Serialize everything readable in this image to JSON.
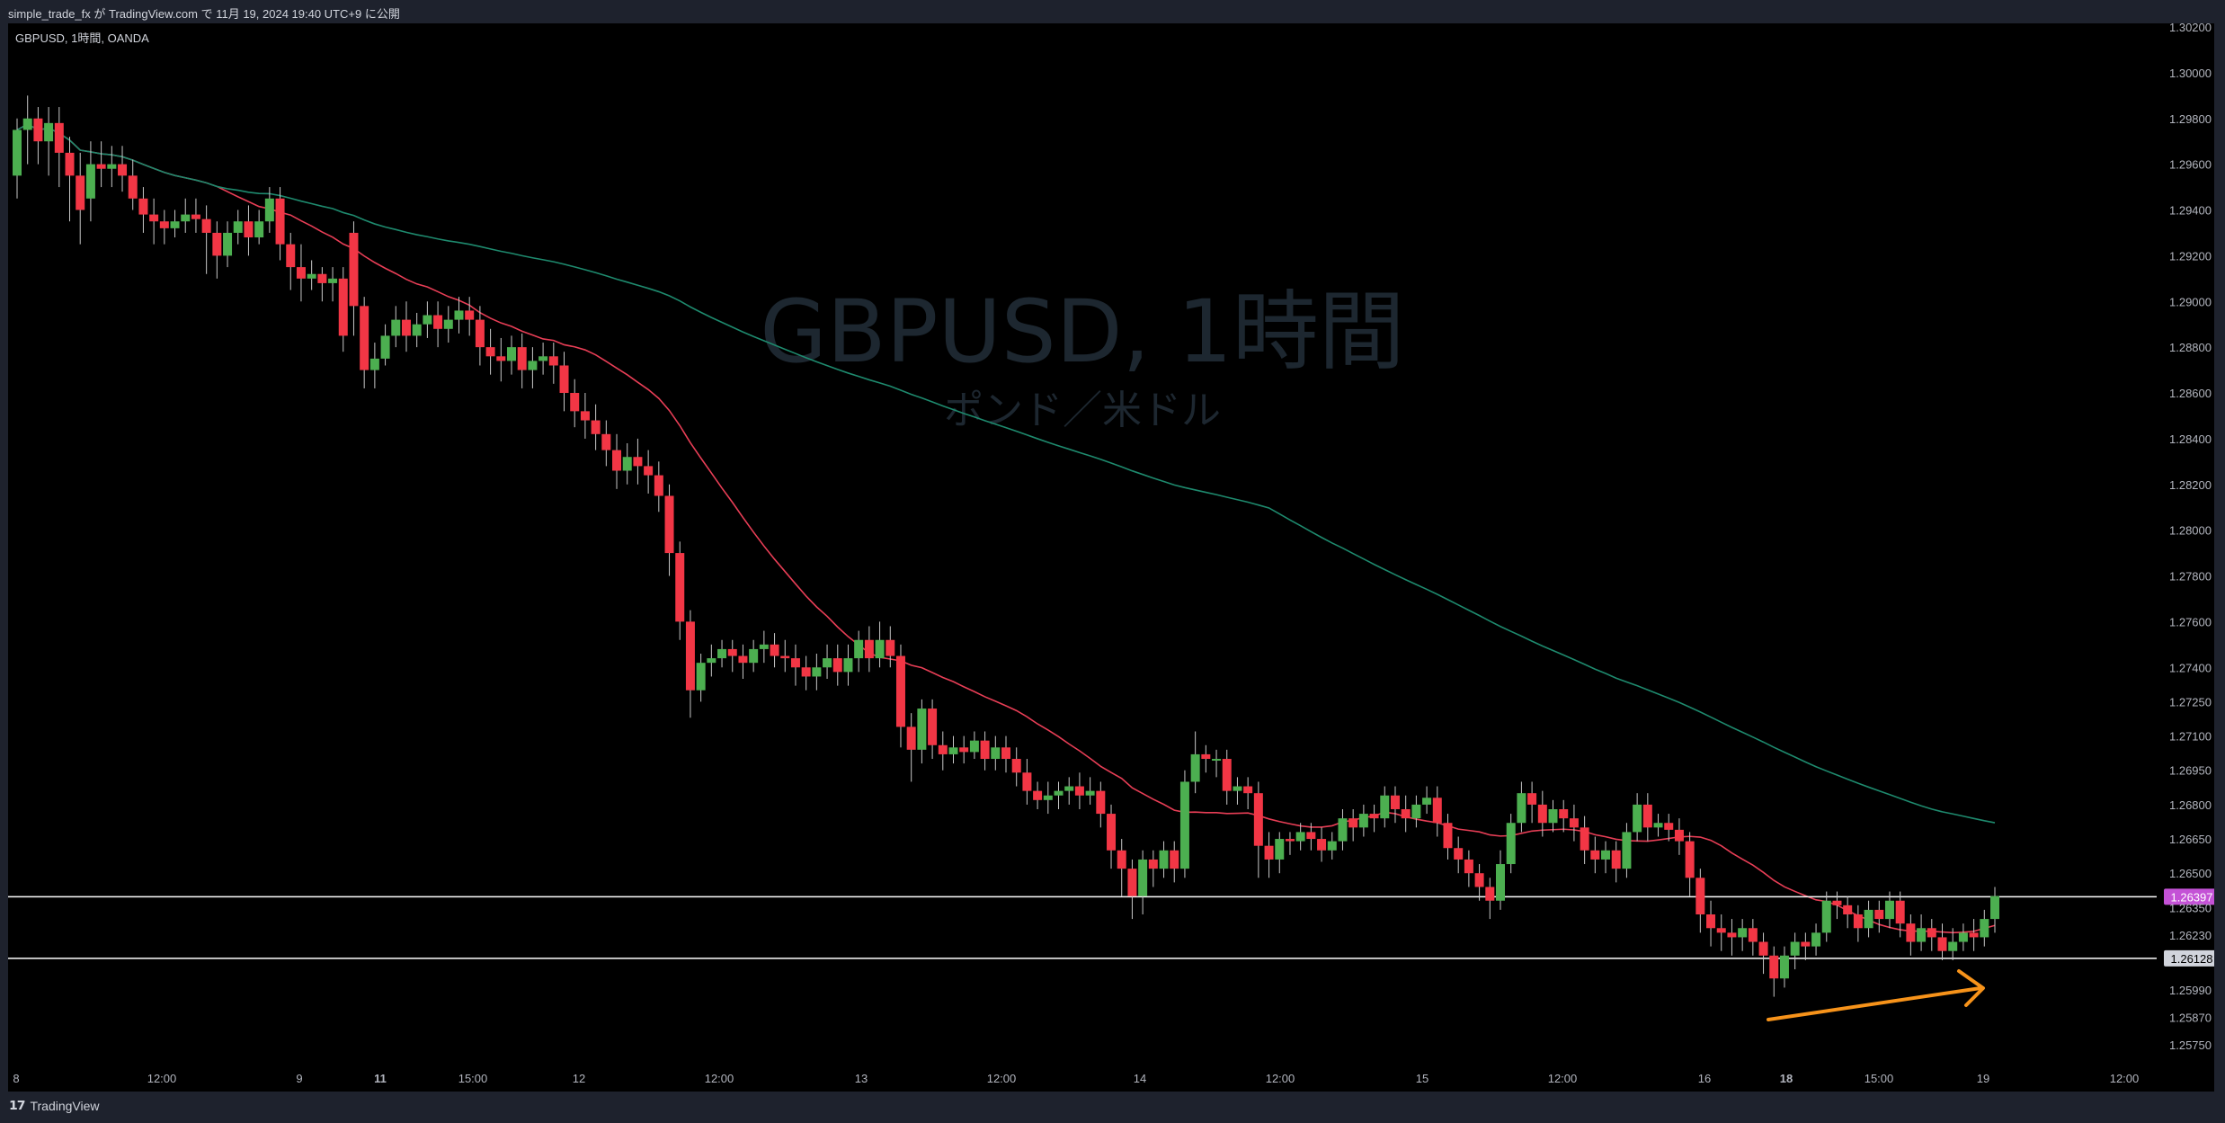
{
  "header": {
    "publish_line": "simple_trade_fx が TradingView.com で 11月 19, 2024 19:40 UTC+9 に公開"
  },
  "footer": {
    "brand": "TradingView",
    "logo": "tradingview-logo-icon"
  },
  "colors": {
    "up": "#4caf50",
    "down": "#f23645",
    "ma_fast": "#e83e56",
    "ma_slow": "#1e8a6e",
    "arrow": "#f7931a",
    "hline": "#ffffff",
    "price_tag_current": "#c452d6"
  },
  "chart_data": {
    "type": "candlestick",
    "symbol_line": "GBPUSD, 1時間, OANDA",
    "watermark_title": "GBPUSD, 1時間",
    "watermark_subtitle": "ポンド／米ドル",
    "y_axis_ticks": [
      "1.30200",
      "1.30000",
      "1.29800",
      "1.29600",
      "1.29400",
      "1.29200",
      "1.29000",
      "1.28800",
      "1.28600",
      "1.28400",
      "1.28200",
      "1.28000",
      "1.27800",
      "1.27600",
      "1.27400",
      "1.27250",
      "1.27100",
      "1.26950",
      "1.26800",
      "1.26650",
      "1.26500",
      "1.26350",
      "1.26230",
      "1.26128",
      "1.25990",
      "1.25870",
      "1.25750"
    ],
    "x_axis_ticks": [
      {
        "label": "8",
        "bold": false
      },
      {
        "label": "12:00",
        "bold": false
      },
      {
        "label": "9",
        "bold": false
      },
      {
        "label": "11",
        "bold": true
      },
      {
        "label": "15:00",
        "bold": false
      },
      {
        "label": "12",
        "bold": false
      },
      {
        "label": "12:00",
        "bold": false
      },
      {
        "label": "13",
        "bold": false
      },
      {
        "label": "12:00",
        "bold": false
      },
      {
        "label": "14",
        "bold": false
      },
      {
        "label": "12:00",
        "bold": false
      },
      {
        "label": "15",
        "bold": false
      },
      {
        "label": "12:00",
        "bold": false
      },
      {
        "label": "16",
        "bold": false
      },
      {
        "label": "18",
        "bold": true
      },
      {
        "label": "15:00",
        "bold": false
      },
      {
        "label": "19",
        "bold": false
      },
      {
        "label": "12:00",
        "bold": false
      }
    ],
    "horizontal_lines": [
      {
        "value": 1.26397,
        "label": "1.26397",
        "tag": "current"
      },
      {
        "value": 1.26128,
        "label": "1.26128",
        "tag": "level"
      }
    ],
    "candles": [
      [
        1.2955,
        1.2975,
        1.2945,
        1.298
      ],
      [
        1.2975,
        1.298,
        1.296,
        1.299
      ],
      [
        1.298,
        1.297,
        1.296,
        1.2985
      ],
      [
        1.297,
        1.2978,
        1.2955,
        1.2985
      ],
      [
        1.2978,
        1.2965,
        1.295,
        1.2985
      ],
      [
        1.2965,
        1.2955,
        1.2935,
        1.2972
      ],
      [
        1.2955,
        1.294,
        1.2925,
        1.2965
      ],
      [
        1.2945,
        1.296,
        1.2935,
        1.297
      ],
      [
        1.296,
        1.2958,
        1.295,
        1.297
      ],
      [
        1.2958,
        1.296,
        1.295,
        1.2968
      ],
      [
        1.296,
        1.2955,
        1.2948,
        1.2968
      ],
      [
        1.2955,
        1.2945,
        1.294,
        1.2962
      ],
      [
        1.2945,
        1.2938,
        1.293,
        1.295
      ],
      [
        1.2938,
        1.2935,
        1.2925,
        1.2945
      ],
      [
        1.2935,
        1.2932,
        1.2925,
        1.294
      ],
      [
        1.2932,
        1.2935,
        1.2928,
        1.294
      ],
      [
        1.2935,
        1.2938,
        1.293,
        1.2945
      ],
      [
        1.2938,
        1.2936,
        1.293,
        1.2945
      ],
      [
        1.2936,
        1.293,
        1.2912,
        1.2942
      ],
      [
        1.293,
        1.292,
        1.291,
        1.2935
      ],
      [
        1.292,
        1.293,
        1.2915,
        1.2935
      ],
      [
        1.293,
        1.2935,
        1.2925,
        1.294
      ],
      [
        1.2935,
        1.2928,
        1.292,
        1.2942
      ],
      [
        1.2928,
        1.2935,
        1.2925,
        1.294
      ],
      [
        1.2935,
        1.2945,
        1.293,
        1.295
      ],
      [
        1.2945,
        1.2925,
        1.2918,
        1.295
      ],
      [
        1.2925,
        1.2915,
        1.2905,
        1.293
      ],
      [
        1.2915,
        1.291,
        1.29,
        1.2925
      ],
      [
        1.291,
        1.2912,
        1.2905,
        1.2918
      ],
      [
        1.2912,
        1.2908,
        1.29,
        1.2915
      ],
      [
        1.2908,
        1.291,
        1.29,
        1.2915
      ],
      [
        1.291,
        1.2885,
        1.2878,
        1.2915
      ],
      [
        1.293,
        1.2898,
        1.2885,
        1.2935
      ],
      [
        1.2898,
        1.287,
        1.2862,
        1.2902
      ],
      [
        1.287,
        1.2875,
        1.2862,
        1.2882
      ],
      [
        1.2875,
        1.2885,
        1.2872,
        1.289
      ],
      [
        1.2885,
        1.2892,
        1.288,
        1.2898
      ],
      [
        1.2892,
        1.2885,
        1.2878,
        1.29
      ],
      [
        1.2885,
        1.289,
        1.288,
        1.2895
      ],
      [
        1.289,
        1.2894,
        1.2884,
        1.29
      ],
      [
        1.2894,
        1.2888,
        1.288,
        1.29
      ],
      [
        1.2888,
        1.2892,
        1.2882,
        1.2898
      ],
      [
        1.2892,
        1.2896,
        1.2886,
        1.2902
      ],
      [
        1.2896,
        1.2892,
        1.2885,
        1.2902
      ],
      [
        1.2892,
        1.288,
        1.2872,
        1.2898
      ],
      [
        1.288,
        1.2876,
        1.2868,
        1.2888
      ],
      [
        1.2876,
        1.2874,
        1.2865,
        1.2884
      ],
      [
        1.2874,
        1.288,
        1.2868,
        1.2885
      ],
      [
        1.288,
        1.287,
        1.2862,
        1.2886
      ],
      [
        1.287,
        1.2874,
        1.2862,
        1.288
      ],
      [
        1.2874,
        1.2876,
        1.2868,
        1.2882
      ],
      [
        1.2876,
        1.2872,
        1.2864,
        1.2882
      ],
      [
        1.2872,
        1.286,
        1.2852,
        1.2878
      ],
      [
        1.286,
        1.2852,
        1.2845,
        1.2866
      ],
      [
        1.2852,
        1.2848,
        1.284,
        1.286
      ],
      [
        1.2848,
        1.2842,
        1.2835,
        1.2855
      ],
      [
        1.2842,
        1.2835,
        1.2828,
        1.2848
      ],
      [
        1.2835,
        1.2826,
        1.2818,
        1.2842
      ],
      [
        1.2826,
        1.2832,
        1.282,
        1.2838
      ],
      [
        1.2832,
        1.2828,
        1.282,
        1.284
      ],
      [
        1.2828,
        1.2824,
        1.2816,
        1.2835
      ],
      [
        1.2824,
        1.2815,
        1.2808,
        1.283
      ],
      [
        1.2815,
        1.279,
        1.278,
        1.282
      ],
      [
        1.279,
        1.276,
        1.2752,
        1.2795
      ],
      [
        1.276,
        1.273,
        1.2718,
        1.2765
      ],
      [
        1.273,
        1.2742,
        1.2725,
        1.2746
      ],
      [
        1.2742,
        1.2744,
        1.2736,
        1.275
      ],
      [
        1.2744,
        1.2748,
        1.274,
        1.2752
      ],
      [
        1.2748,
        1.2745,
        1.2738,
        1.2752
      ],
      [
        1.2745,
        1.2742,
        1.2735,
        1.275
      ],
      [
        1.2742,
        1.2748,
        1.2738,
        1.2752
      ],
      [
        1.2748,
        1.275,
        1.2742,
        1.2756
      ],
      [
        1.275,
        1.2745,
        1.274,
        1.2755
      ],
      [
        1.2745,
        1.2744,
        1.2738,
        1.2752
      ],
      [
        1.2744,
        1.274,
        1.2732,
        1.275
      ],
      [
        1.274,
        1.2736,
        1.273,
        1.2745
      ],
      [
        1.2736,
        1.274,
        1.273,
        1.2746
      ],
      [
        1.274,
        1.2744,
        1.2735,
        1.275
      ],
      [
        1.2744,
        1.2738,
        1.2732,
        1.275
      ],
      [
        1.2738,
        1.2744,
        1.2732,
        1.275
      ],
      [
        1.2744,
        1.2752,
        1.2738,
        1.2756
      ],
      [
        1.2752,
        1.2744,
        1.2738,
        1.2758
      ],
      [
        1.2744,
        1.2752,
        1.274,
        1.276
      ],
      [
        1.2752,
        1.2745,
        1.274,
        1.2758
      ],
      [
        1.2745,
        1.2714,
        1.2705,
        1.275
      ],
      [
        1.2714,
        1.2704,
        1.269,
        1.272
      ],
      [
        1.2704,
        1.2722,
        1.2698,
        1.2726
      ],
      [
        1.2722,
        1.2706,
        1.27,
        1.2726
      ],
      [
        1.2706,
        1.2702,
        1.2695,
        1.2712
      ],
      [
        1.2702,
        1.2705,
        1.2698,
        1.271
      ],
      [
        1.2705,
        1.2703,
        1.2698,
        1.271
      ],
      [
        1.2703,
        1.2708,
        1.27,
        1.2712
      ],
      [
        1.2708,
        1.27,
        1.2695,
        1.2712
      ],
      [
        1.27,
        1.2705,
        1.2695,
        1.271
      ],
      [
        1.2705,
        1.27,
        1.2694,
        1.271
      ],
      [
        1.27,
        1.2694,
        1.2688,
        1.2705
      ],
      [
        1.2694,
        1.2686,
        1.268,
        1.27
      ],
      [
        1.2686,
        1.2682,
        1.2678,
        1.269
      ],
      [
        1.2682,
        1.2684,
        1.2676,
        1.269
      ],
      [
        1.2684,
        1.2686,
        1.2678,
        1.269
      ],
      [
        1.2686,
        1.2688,
        1.268,
        1.2692
      ],
      [
        1.2688,
        1.2684,
        1.2678,
        1.2694
      ],
      [
        1.2684,
        1.2686,
        1.268,
        1.2692
      ],
      [
        1.2686,
        1.2676,
        1.267,
        1.269
      ],
      [
        1.2676,
        1.266,
        1.2652,
        1.268
      ],
      [
        1.266,
        1.2652,
        1.264,
        1.2665
      ],
      [
        1.2652,
        1.264,
        1.263,
        1.2656
      ],
      [
        1.264,
        1.2656,
        1.2632,
        1.266
      ],
      [
        1.2656,
        1.2652,
        1.2644,
        1.266
      ],
      [
        1.2652,
        1.266,
        1.2648,
        1.2664
      ],
      [
        1.266,
        1.2652,
        1.2646,
        1.2664
      ],
      [
        1.2652,
        1.269,
        1.2648,
        1.2695
      ],
      [
        1.269,
        1.2702,
        1.2685,
        1.2712
      ],
      [
        1.2702,
        1.27,
        1.2694,
        1.2706
      ],
      [
        1.27,
        1.27,
        1.2692,
        1.2704
      ],
      [
        1.27,
        1.2686,
        1.268,
        1.2704
      ],
      [
        1.2686,
        1.2688,
        1.268,
        1.2692
      ],
      [
        1.2688,
        1.2685,
        1.2678,
        1.2692
      ],
      [
        1.2685,
        1.2662,
        1.2648,
        1.269
      ],
      [
        1.2662,
        1.2656,
        1.2648,
        1.2668
      ],
      [
        1.2656,
        1.2665,
        1.265,
        1.2668
      ],
      [
        1.2665,
        1.2664,
        1.2658,
        1.2668
      ],
      [
        1.2664,
        1.2668,
        1.266,
        1.2672
      ],
      [
        1.2668,
        1.2665,
        1.266,
        1.2672
      ],
      [
        1.2665,
        1.266,
        1.2655,
        1.267
      ],
      [
        1.266,
        1.2664,
        1.2656,
        1.2668
      ],
      [
        1.2664,
        1.2674,
        1.266,
        1.2678
      ],
      [
        1.2674,
        1.267,
        1.2664,
        1.2678
      ],
      [
        1.267,
        1.2676,
        1.2666,
        1.268
      ],
      [
        1.2676,
        1.2674,
        1.2668,
        1.268
      ],
      [
        1.2674,
        1.2684,
        1.267,
        1.2688
      ],
      [
        1.2684,
        1.2678,
        1.2672,
        1.2688
      ],
      [
        1.2678,
        1.2674,
        1.2668,
        1.2684
      ],
      [
        1.2674,
        1.268,
        1.267,
        1.2684
      ],
      [
        1.268,
        1.2683,
        1.2676,
        1.2688
      ],
      [
        1.2683,
        1.2672,
        1.2666,
        1.2688
      ],
      [
        1.2672,
        1.2661,
        1.2656,
        1.2676
      ],
      [
        1.2661,
        1.2656,
        1.265,
        1.2666
      ],
      [
        1.2656,
        1.265,
        1.2644,
        1.266
      ],
      [
        1.265,
        1.2644,
        1.2638,
        1.2654
      ],
      [
        1.2644,
        1.2638,
        1.263,
        1.2648
      ],
      [
        1.2638,
        1.2654,
        1.2634,
        1.266
      ],
      [
        1.2654,
        1.2672,
        1.265,
        1.2676
      ],
      [
        1.2672,
        1.2685,
        1.2668,
        1.269
      ],
      [
        1.2685,
        1.268,
        1.2672,
        1.269
      ],
      [
        1.268,
        1.2672,
        1.2666,
        1.2686
      ],
      [
        1.2672,
        1.2678,
        1.2668,
        1.2682
      ],
      [
        1.2678,
        1.2674,
        1.2668,
        1.2682
      ],
      [
        1.2674,
        1.267,
        1.2664,
        1.268
      ],
      [
        1.267,
        1.266,
        1.2654,
        1.2675
      ],
      [
        1.266,
        1.2656,
        1.265,
        1.2666
      ],
      [
        1.2656,
        1.266,
        1.265,
        1.2664
      ],
      [
        1.266,
        1.2652,
        1.2646,
        1.2664
      ],
      [
        1.2652,
        1.2668,
        1.2648,
        1.2672
      ],
      [
        1.2668,
        1.268,
        1.2664,
        1.2685
      ],
      [
        1.268,
        1.267,
        1.2664,
        1.2685
      ],
      [
        1.267,
        1.2672,
        1.2666,
        1.2676
      ],
      [
        1.2672,
        1.2669,
        1.2664,
        1.2676
      ],
      [
        1.2669,
        1.2664,
        1.2658,
        1.2674
      ],
      [
        1.2664,
        1.2648,
        1.264,
        1.2668
      ],
      [
        1.2648,
        1.2632,
        1.2624,
        1.2652
      ],
      [
        1.2632,
        1.2626,
        1.2618,
        1.2638
      ],
      [
        1.2626,
        1.2624,
        1.2616,
        1.2632
      ],
      [
        1.2624,
        1.2622,
        1.2614,
        1.263
      ],
      [
        1.2622,
        1.2626,
        1.2616,
        1.263
      ],
      [
        1.2626,
        1.262,
        1.2614,
        1.263
      ],
      [
        1.262,
        1.2614,
        1.2606,
        1.2624
      ],
      [
        1.2614,
        1.2604,
        1.2596,
        1.2618
      ],
      [
        1.2604,
        1.2614,
        1.26,
        1.2618
      ],
      [
        1.2614,
        1.262,
        1.2608,
        1.2624
      ],
      [
        1.262,
        1.2618,
        1.2612,
        1.2624
      ],
      [
        1.2618,
        1.2624,
        1.2614,
        1.2628
      ],
      [
        1.2624,
        1.2638,
        1.262,
        1.2642
      ],
      [
        1.2638,
        1.2636,
        1.263,
        1.2642
      ],
      [
        1.2636,
        1.2632,
        1.2626,
        1.264
      ],
      [
        1.2632,
        1.2626,
        1.262,
        1.2636
      ],
      [
        1.2626,
        1.2634,
        1.2622,
        1.2638
      ],
      [
        1.2634,
        1.263,
        1.2624,
        1.2638
      ],
      [
        1.263,
        1.2638,
        1.2626,
        1.2642
      ],
      [
        1.2638,
        1.2628,
        1.2622,
        1.2642
      ],
      [
        1.2628,
        1.262,
        1.2614,
        1.2632
      ],
      [
        1.262,
        1.2626,
        1.2616,
        1.2632
      ],
      [
        1.2626,
        1.2622,
        1.2616,
        1.263
      ],
      [
        1.2622,
        1.2616,
        1.2612,
        1.2628
      ],
      [
        1.2616,
        1.262,
        1.2612,
        1.2626
      ],
      [
        1.262,
        1.2624,
        1.2616,
        1.2628
      ],
      [
        1.2624,
        1.2622,
        1.2616,
        1.263
      ],
      [
        1.2622,
        1.263,
        1.2618,
        1.2634
      ],
      [
        1.263,
        1.264,
        1.2624,
        1.2644
      ]
    ]
  }
}
